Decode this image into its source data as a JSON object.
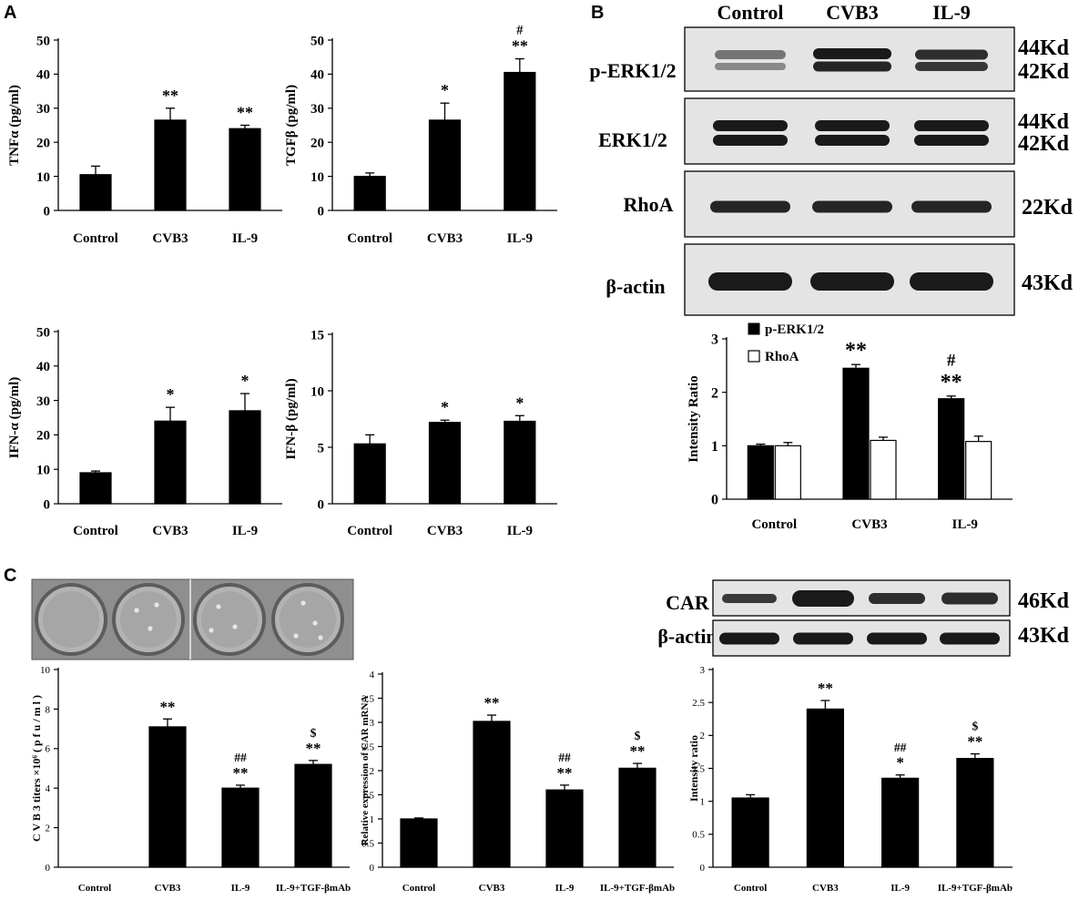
{
  "panels": {
    "A": "A",
    "B": "B",
    "C": "C"
  },
  "charts": [
    {
      "title": "",
      "xlabel": "",
      "ylabel": "TNFα (pg/ml)",
      "ylim": [
        0,
        50
      ],
      "yticks": [
        "0",
        "10",
        "20",
        "30",
        "40",
        "50"
      ],
      "categories": [
        "Control",
        "CVB3",
        "IL-9"
      ],
      "values": [
        10.5,
        26.5,
        24
      ],
      "errors": [
        2.5,
        3.5,
        1
      ],
      "annotations": [
        [],
        [
          "**"
        ],
        [
          "**"
        ]
      ]
    },
    {
      "title": "",
      "xlabel": "",
      "ylabel": "TGFβ (pg/ml)",
      "ylim": [
        0,
        50
      ],
      "yticks": [
        "0",
        "10",
        "20",
        "30",
        "40",
        "50"
      ],
      "categories": [
        "Control",
        "CVB3",
        "IL-9"
      ],
      "values": [
        10,
        26.5,
        40.5
      ],
      "errors": [
        1,
        5,
        4
      ],
      "annotations": [
        [],
        [
          "*"
        ],
        [
          "**",
          "#"
        ]
      ]
    },
    {
      "title": "",
      "xlabel": "",
      "ylabel": "IFN-α (pg/ml)",
      "ylim": [
        0,
        50
      ],
      "yticks": [
        "0",
        "10",
        "20",
        "30",
        "40",
        "50"
      ],
      "categories": [
        "Control",
        "CVB3",
        "IL-9"
      ],
      "values": [
        9,
        24,
        27
      ],
      "errors": [
        0.5,
        4,
        5
      ],
      "annotations": [
        [],
        [
          "*"
        ],
        [
          "*"
        ]
      ]
    },
    {
      "title": "",
      "xlabel": "",
      "ylabel": "IFN-β (pg/ml)",
      "ylim": [
        0,
        15
      ],
      "yticks": [
        "0",
        "5",
        "10",
        "15"
      ],
      "categories": [
        "Control",
        "CVB3",
        "IL-9"
      ],
      "values": [
        5.3,
        7.2,
        7.3
      ],
      "errors": [
        0.8,
        0.2,
        0.5
      ],
      "annotations": [
        [],
        [
          "*"
        ],
        [
          "*"
        ]
      ]
    }
  ],
  "chart_data": [
    {
      "type": "bar",
      "ylabel": "TNFα (pg/ml)",
      "ylim": [
        0,
        50
      ],
      "categories": [
        "Control",
        "CVB3",
        "IL-9"
      ],
      "values": [
        10.5,
        26.5,
        24
      ],
      "errors": [
        2.5,
        3.5,
        1
      ]
    },
    {
      "type": "bar",
      "ylabel": "TGFβ (pg/ml)",
      "ylim": [
        0,
        50
      ],
      "categories": [
        "Control",
        "CVB3",
        "IL-9"
      ],
      "values": [
        10,
        26.5,
        40.5
      ],
      "errors": [
        1,
        5,
        4
      ]
    },
    {
      "type": "bar",
      "ylabel": "IFN-α (pg/ml)",
      "ylim": [
        0,
        50
      ],
      "categories": [
        "Control",
        "CVB3",
        "IL-9"
      ],
      "values": [
        9,
        24,
        27
      ],
      "errors": [
        0.5,
        4,
        5
      ]
    },
    {
      "type": "bar",
      "ylabel": "IFN-β (pg/ml)",
      "ylim": [
        0,
        15
      ],
      "categories": [
        "Control",
        "CVB3",
        "IL-9"
      ],
      "values": [
        5.3,
        7.2,
        7.3
      ],
      "errors": [
        0.8,
        0.2,
        0.5
      ]
    },
    {
      "type": "bar",
      "ylabel": "Intensity Ratio",
      "ylim": [
        0,
        3
      ],
      "categories": [
        "Control",
        "CVB3",
        "IL-9"
      ],
      "series": [
        {
          "name": "p-ERK1/2",
          "values": [
            1.0,
            2.45,
            1.88
          ],
          "errors": [
            0.03,
            0.07,
            0.05
          ]
        },
        {
          "name": "RhoA",
          "values": [
            1.0,
            1.1,
            1.08
          ],
          "errors": [
            0.06,
            0.06,
            0.1
          ]
        }
      ]
    },
    {
      "type": "bar",
      "ylabel": "C V B 3 titers ×10⁶ ( p f u / m l )",
      "ylim": [
        0,
        10
      ],
      "categories": [
        "Control",
        "CVB3",
        "IL-9",
        "IL-9+TGF-βmAb"
      ],
      "values": [
        0,
        7.1,
        4.0,
        5.2
      ],
      "errors": [
        0,
        0.4,
        0.15,
        0.2
      ]
    },
    {
      "type": "bar",
      "ylabel": "Relative expression of CAR mRNA",
      "ylim": [
        0,
        4
      ],
      "categories": [
        "Control",
        "CVB3",
        "IL-9",
        "IL-9+TGF-βmAb"
      ],
      "values": [
        1.0,
        3.02,
        1.6,
        2.05
      ],
      "errors": [
        0.02,
        0.13,
        0.1,
        0.1
      ]
    },
    {
      "type": "bar",
      "ylabel": "Intensity ratio",
      "ylim": [
        0,
        3
      ],
      "categories": [
        "Control",
        "CVB3",
        "IL-9",
        "IL-9+TGF-βmAb"
      ],
      "values": [
        1.05,
        2.4,
        1.35,
        1.65
      ],
      "errors": [
        0.05,
        0.13,
        0.05,
        0.07
      ]
    }
  ],
  "blotB": {
    "lanes": [
      "Control",
      "CVB3",
      "IL-9"
    ],
    "rows": [
      {
        "label": "p-ERK1/2",
        "sizes": [
          "44Kd",
          "42Kd"
        ]
      },
      {
        "label": "ERK1/2",
        "sizes": [
          "44Kd",
          "42Kd"
        ]
      },
      {
        "label": "RhoA",
        "sizes": [
          "22Kd"
        ]
      },
      {
        "label": "β-actin",
        "sizes": [
          "43Kd"
        ]
      }
    ]
  },
  "chartB": {
    "ylabel": "Intensity Ratio",
    "yticks": [
      "0",
      "1",
      "2",
      "3"
    ],
    "categories": [
      "Control",
      "CVB3",
      "IL-9"
    ],
    "legend": [
      "p-ERK1/2",
      "RhoA"
    ],
    "annotations": [
      [],
      [
        "**"
      ],
      [
        "**",
        "#"
      ]
    ]
  },
  "blotC": {
    "rows": [
      {
        "label": "CAR",
        "size": "46Kd"
      },
      {
        "label": "β-actin",
        "size": "43Kd"
      }
    ]
  },
  "chartsC": [
    {
      "ylabel": "C V B 3 titers ×10⁶ ( p f u / m l )",
      "yticks": [
        "0",
        "2",
        "4",
        "6",
        "8",
        "10"
      ],
      "categories": [
        "Control",
        "CVB3",
        "IL-9",
        "IL-9+TGF-βmAb"
      ],
      "annotations": [
        [],
        [
          "**"
        ],
        [
          "**",
          "##"
        ],
        [
          "**",
          "$"
        ]
      ]
    },
    {
      "ylabel": "Relative expression of CAR mRNA",
      "yticks": [
        "0",
        "0.5",
        "1",
        "1.5",
        "2",
        "2.5",
        "3",
        "3.5",
        "4"
      ],
      "categories": [
        "Control",
        "CVB3",
        "IL-9",
        "IL-9+TGF-βmAb"
      ],
      "annotations": [
        [],
        [
          "**"
        ],
        [
          "**",
          "##"
        ],
        [
          "**",
          "$"
        ]
      ]
    },
    {
      "ylabel": "Intensity ratio",
      "yticks": [
        "0",
        "0.5",
        "1",
        "1.5",
        "2",
        "2.5",
        "3"
      ],
      "categories": [
        "Control",
        "CVB3",
        "IL-9",
        "IL-9+TGF-βmAb"
      ],
      "annotations": [
        [],
        [
          "**"
        ],
        [
          "*",
          "##"
        ],
        [
          "**",
          "$"
        ]
      ]
    }
  ],
  "colors": {
    "bar": "#000000",
    "bar_open": "#ffffff",
    "blot_bg": "#e4e4e4",
    "band": "#1a1a1a",
    "plate_bg": "#8a8a8a"
  }
}
